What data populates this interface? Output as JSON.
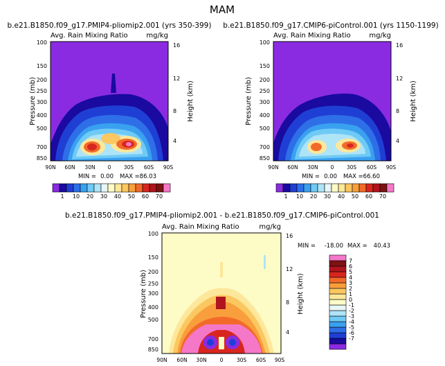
{
  "figure_title": "MAM",
  "colors": {
    "rain_levels": [
      "#8a2be2",
      "#1a0aa0",
      "#1f3fd4",
      "#2e6fe8",
      "#3aa0f0",
      "#6fcaf5",
      "#aee4f7",
      "#e8f6f7",
      "#fdfbc6",
      "#fde79a",
      "#fbc760",
      "#f99e3c",
      "#f26a2a",
      "#d8261f",
      "#b0141e",
      "#7d1212",
      "#f578c8"
    ],
    "diff_levels": [
      "#8a2be2",
      "#1a0aa0",
      "#1f3fd4",
      "#2e6fe8",
      "#3aa0f0",
      "#6fcaf5",
      "#aee4f7",
      "#e8f6f7",
      "#fdfbc6",
      "#fde79a",
      "#fbc760",
      "#f99e3c",
      "#f26a2a",
      "#d8261f",
      "#b0141e",
      "#7d1212",
      "#f578c8"
    ]
  },
  "chart_data": [
    {
      "type": "heatmap",
      "title": "b.e21.B1850.f09_g17.PMIP4-pliomip2.001 (yrs 350-399)",
      "variable": "Avg. Rain Mixing Ratio",
      "units": "mg/kg",
      "ylabel": "Pressure (mb)",
      "ylabel_right": "Height (km)",
      "x_ticks": [
        "90N",
        "60N",
        "30N",
        "0",
        "30S",
        "60S",
        "90S"
      ],
      "y_ticks": [
        "100",
        "150",
        "200",
        "250",
        "300",
        "400",
        "500",
        "700",
        "850"
      ],
      "y_ticks_right": [
        "16",
        "12",
        "8",
        "4"
      ],
      "min_label": "MIN =",
      "min": "0.00",
      "max_label": "MAX =",
      "max": "86.03",
      "colorbar_labels": [
        "1",
        "10",
        "20",
        "30",
        "40",
        "50",
        "60",
        "70"
      ]
    },
    {
      "type": "heatmap",
      "title": "b.e21.B1850.f09_g17.CMIP6-piControl.001 (yrs 1150-1199)",
      "variable": "Avg. Rain Mixing Ratio",
      "units": "mg/kg",
      "ylabel": "Pressure (mb)",
      "ylabel_right": "Height (km)",
      "x_ticks": [
        "90N",
        "60N",
        "30N",
        "0",
        "30S",
        "60S",
        "90S"
      ],
      "y_ticks": [
        "100",
        "150",
        "200",
        "250",
        "300",
        "400",
        "500",
        "700",
        "850"
      ],
      "y_ticks_right": [
        "16",
        "12",
        "8",
        "4"
      ],
      "min_label": "MIN =",
      "min": "0.00",
      "max_label": "MAX =",
      "max": "66.60",
      "colorbar_labels": [
        "1",
        "10",
        "20",
        "30",
        "40",
        "50",
        "60",
        "70"
      ]
    },
    {
      "type": "heatmap",
      "title": "b.e21.B1850.f09_g17.PMIP4-pliomip2.001 - b.e21.B1850.f09_g17.CMIP6-piControl.001",
      "variable": "Avg. Rain Mixing Ratio",
      "units": "mg/kg",
      "ylabel": "Pressure (mb)",
      "ylabel_right": "Height (km)",
      "x_ticks": [
        "90N",
        "60N",
        "30N",
        "0",
        "30S",
        "60S",
        "90S"
      ],
      "y_ticks": [
        "100",
        "150",
        "200",
        "250",
        "300",
        "400",
        "500",
        "700",
        "850"
      ],
      "y_ticks_right": [
        "16",
        "12",
        "8",
        "4"
      ],
      "min_label": "MIN =",
      "min": "-18.00",
      "max_label": "MAX =",
      "max": "40.43",
      "colorbar_labels": [
        "7",
        "6",
        "5",
        "4",
        "3",
        "2",
        "1",
        "0",
        "-1",
        "-2",
        "-3",
        "-4",
        "-5",
        "-6",
        "-7"
      ]
    }
  ]
}
